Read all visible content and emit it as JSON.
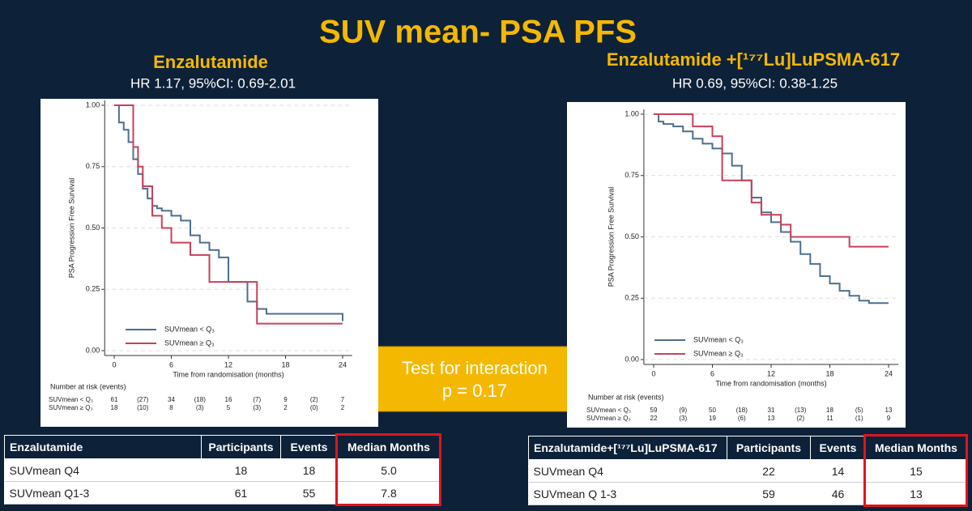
{
  "title": "SUV mean- PSA PFS",
  "interaction": {
    "label": "Test for interaction",
    "p": "p = 0.17"
  },
  "chart_data": [
    {
      "type": "line",
      "step": true,
      "title": "Enzalutamide",
      "subtitle": "HR 1.17, 95%CI: 0.69-2.01",
      "x_label": "Time from randomisation (months)",
      "y_label": "PSA Progression Free Survival",
      "xlim": [
        -1,
        25
      ],
      "ylim": [
        -0.02,
        1.02
      ],
      "xticks": [
        0,
        6,
        12,
        18,
        24
      ],
      "yticks": [
        {
          "value": 0,
          "label": "0.00"
        },
        {
          "value": 0.25,
          "label": "0.25"
        },
        {
          "value": 0.5,
          "label": "0.50"
        },
        {
          "value": 0.75,
          "label": "0.75"
        },
        {
          "value": 1,
          "label": "1.00"
        }
      ],
      "grid": true,
      "legend": "lower left",
      "series": [
        {
          "name": "SUVmean < Q₃",
          "color": "#4d6f8f",
          "x": [
            0,
            0.5,
            1,
            1.5,
            2,
            2.5,
            3,
            3.5,
            4,
            4.5,
            5,
            6,
            7,
            8,
            9,
            10,
            11,
            12,
            14,
            15,
            16,
            24
          ],
          "values": [
            1,
            0.93,
            0.9,
            0.85,
            0.78,
            0.72,
            0.66,
            0.62,
            0.59,
            0.58,
            0.57,
            0.55,
            0.53,
            0.47,
            0.44,
            0.41,
            0.38,
            0.28,
            0.2,
            0.17,
            0.15,
            0.12
          ]
        },
        {
          "name": "SUVmean ≥ Q₃",
          "color": "#c9405a",
          "x": [
            0,
            1,
            2,
            2.5,
            3,
            4,
            5,
            6,
            8,
            10,
            15,
            24
          ],
          "values": [
            1,
            1,
            0.83,
            0.75,
            0.67,
            0.55,
            0.5,
            0.44,
            0.39,
            0.28,
            0.11,
            0.11
          ]
        }
      ],
      "risk_table": {
        "title": "Number at risk (events)",
        "rows": [
          {
            "label": "SUVmean < Q₃",
            "cells": [
              "61",
              "(27)",
              "34",
              "(18)",
              "16",
              "(7)",
              "9",
              "(2)",
              "7"
            ]
          },
          {
            "label": "SUVmean ≥ Q₃",
            "cells": [
              "18",
              "(10)",
              "8",
              "(3)",
              "5",
              "(3)",
              "2",
              "(0)",
              "2"
            ]
          }
        ]
      }
    },
    {
      "type": "line",
      "step": true,
      "title": "Enzalutamide +[¹⁷⁷Lu]LuPSMA-617",
      "subtitle": "HR 0.69, 95%CI: 0.38-1.25",
      "x_label": "Time from randomisation (months)",
      "y_label": "PSA Progression Free Survival",
      "xlim": [
        -1,
        25
      ],
      "ylim": [
        -0.02,
        1.02
      ],
      "xticks": [
        0,
        6,
        12,
        18,
        24
      ],
      "yticks": [
        {
          "value": 0,
          "label": "0.00"
        },
        {
          "value": 0.25,
          "label": "0.25"
        },
        {
          "value": 0.5,
          "label": "0.50"
        },
        {
          "value": 0.75,
          "label": "0.75"
        },
        {
          "value": 1,
          "label": "1.00"
        }
      ],
      "grid": true,
      "legend": "lower left",
      "series": [
        {
          "name": "SUVmean < Q₃",
          "color": "#4d6f8f",
          "x": [
            0,
            0.5,
            1,
            2,
            3,
            4,
            5,
            6,
            7,
            8,
            9,
            10,
            11,
            12,
            13,
            14,
            15,
            16,
            17,
            18,
            19,
            20,
            21,
            22,
            24
          ],
          "values": [
            1,
            0.97,
            0.96,
            0.95,
            0.93,
            0.9,
            0.88,
            0.86,
            0.84,
            0.79,
            0.73,
            0.66,
            0.6,
            0.56,
            0.52,
            0.48,
            0.43,
            0.39,
            0.34,
            0.31,
            0.28,
            0.26,
            0.24,
            0.23,
            0.23
          ]
        },
        {
          "name": "SUVmean ≥ Q₃",
          "color": "#c9405a",
          "x": [
            0,
            4,
            6,
            7,
            9,
            10,
            11,
            13,
            14,
            16,
            20,
            24
          ],
          "values": [
            1,
            0.95,
            0.91,
            0.73,
            0.73,
            0.64,
            0.59,
            0.55,
            0.5,
            0.5,
            0.46,
            0.46
          ]
        }
      ],
      "risk_table": {
        "title": "Number at risk (events)",
        "rows": [
          {
            "label": "SUVmean < Q₃",
            "cells": [
              "59",
              "(9)",
              "50",
              "(18)",
              "31",
              "(13)",
              "18",
              "(5)",
              "13"
            ]
          },
          {
            "label": "SUVmean ≥ Q₃",
            "cells": [
              "22",
              "(3)",
              "19",
              "(6)",
              "13",
              "(2)",
              "11",
              "(1)",
              "9"
            ]
          }
        ]
      }
    }
  ],
  "tables": [
    {
      "header": [
        "Enzalutamide",
        "Participants",
        "Events",
        "Median Months"
      ],
      "rows": [
        [
          "SUVmean Q4",
          "18",
          "18",
          "5.0"
        ],
        [
          "SUVmean Q1-3",
          "61",
          "55",
          "7.8"
        ]
      ]
    },
    {
      "header": [
        "Enzalutamide+[¹⁷⁷Lu]LuPSMA-617",
        "Participants",
        "Events",
        "Median Months"
      ],
      "rows": [
        [
          "SUVmean Q4",
          "22",
          "14",
          "15"
        ],
        [
          "SUVmean Q 1-3",
          "59",
          "46",
          "13"
        ]
      ]
    }
  ]
}
